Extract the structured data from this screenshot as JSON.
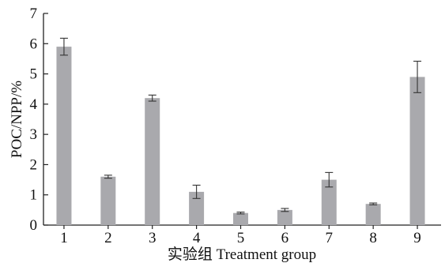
{
  "chart_data": {
    "type": "bar",
    "title": "",
    "xlabel": "实验组 Treatment group",
    "ylabel": "POC/NPP/%",
    "categories": [
      "1",
      "2",
      "3",
      "4",
      "5",
      "6",
      "7",
      "8",
      "9"
    ],
    "series": [
      {
        "values": [
          5.9,
          1.6,
          4.2,
          1.1,
          0.4,
          0.5,
          1.5,
          0.7,
          4.9
        ],
        "errors": [
          0.28,
          0.05,
          0.1,
          0.22,
          0.03,
          0.05,
          0.24,
          0.03,
          0.52
        ]
      }
    ],
    "ylim": [
      0,
      7
    ],
    "yticks": [
      "0",
      "1",
      "2",
      "3",
      "4",
      "5",
      "6",
      "7"
    ],
    "grid": false,
    "legend": "none",
    "bar_color": "#a9a9ad"
  }
}
